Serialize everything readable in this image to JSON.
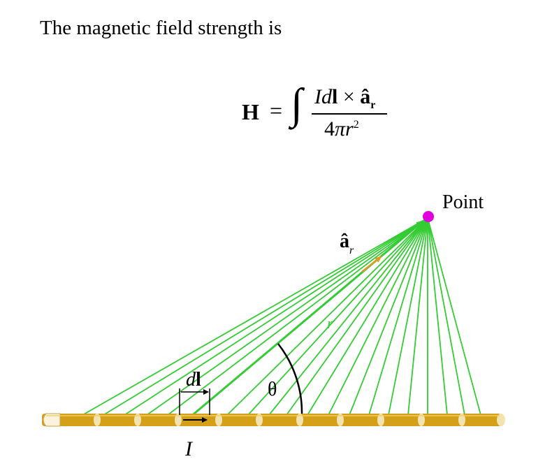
{
  "intro_text": "The magnetic field strength is",
  "equation": {
    "lhs": "H",
    "equals": "=",
    "integral": "∫",
    "numerator_I": "I",
    "numerator_d": "d",
    "numerator_l": "l",
    "numerator_times": " × ",
    "numerator_a": "â",
    "numerator_sub": "r",
    "denominator_coef": "4",
    "denominator_pi": "π",
    "denominator_r": "r",
    "denominator_exp": "2"
  },
  "labels": {
    "point": "Point",
    "unit_vector": "â",
    "unit_vector_sub": "r",
    "distance": "r",
    "angle": "θ",
    "element_d": "d",
    "element_l": "l",
    "current": "I"
  },
  "colors": {
    "lines": "#33cc33",
    "point": "#e000e0",
    "wire": "#d4a017",
    "wire_joint": "#f3e3b0",
    "vector": "#e09a20",
    "text": "#000000"
  }
}
